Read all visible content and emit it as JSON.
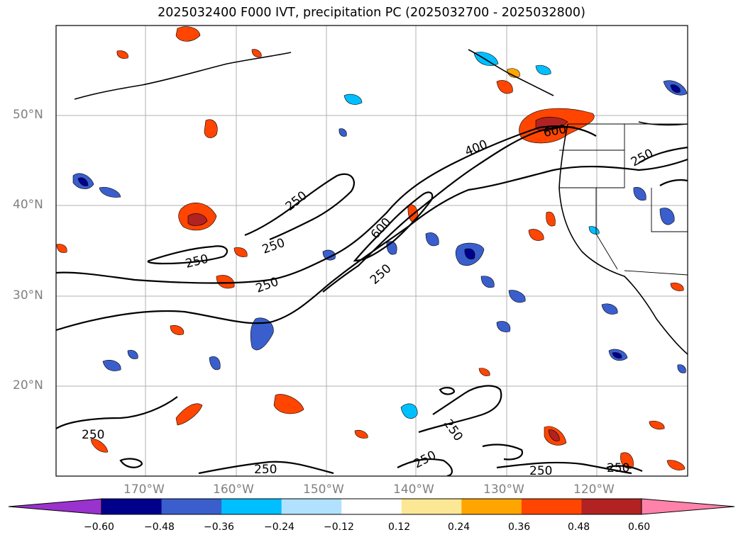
{
  "title": "2025032400 F000 IVT, precipitation PC (2025032700 - 2025032800)",
  "lat_labels": [
    "50°N",
    "40°N",
    "30°N",
    "20°N"
  ],
  "lon_labels": [
    "170°W",
    "160°W",
    "150°W",
    "140°W",
    "130°W",
    "120°W"
  ],
  "contour_labels": [
    "400",
    "250",
    "600",
    "250",
    "250",
    "250",
    "250",
    "600",
    "250",
    "250",
    "250",
    "250",
    "250",
    "250",
    "250",
    "250"
  ],
  "colorbar": {
    "ticks": [
      "−0.60",
      "−0.48",
      "−0.36",
      "−0.24",
      "−0.12",
      "0.12",
      "0.24",
      "0.36",
      "0.48",
      "0.60"
    ],
    "colors": [
      "#9a32cd",
      "#00008b",
      "#3a5fcd",
      "#00bfff",
      "#b0e2ff",
      "#ffffff",
      "#fce794",
      "#ffa500",
      "#ff4500",
      "#b22222",
      "#ff82ab"
    ]
  }
}
